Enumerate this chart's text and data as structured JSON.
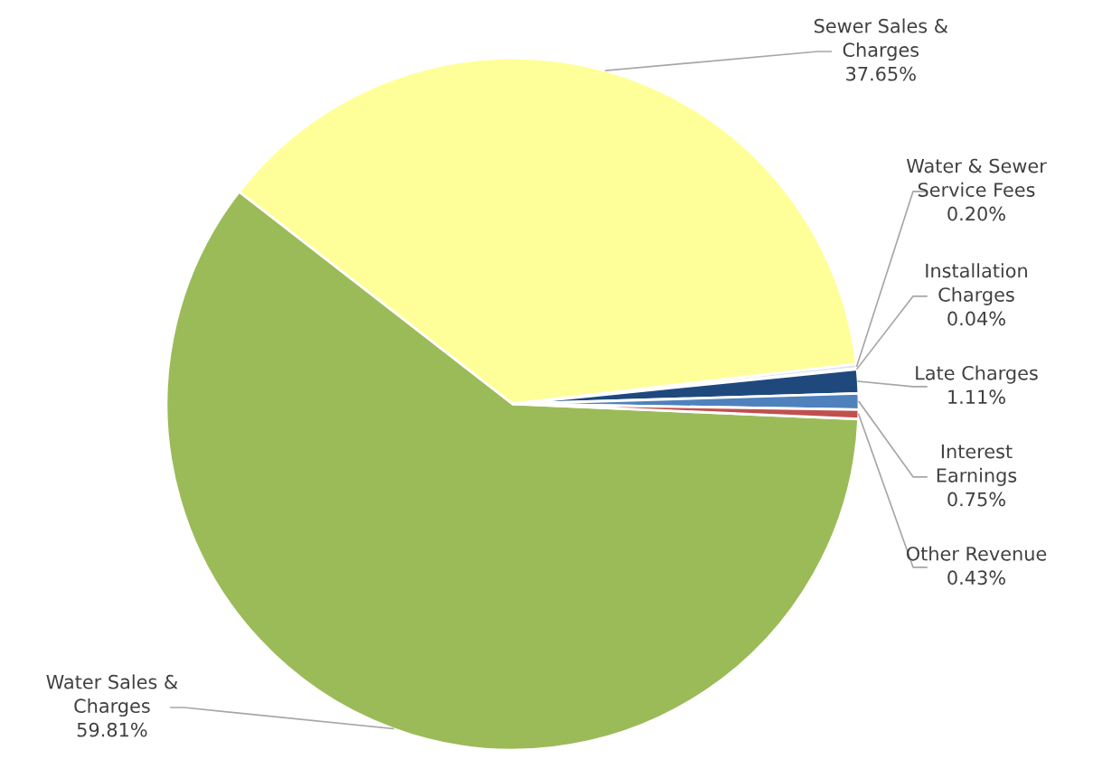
{
  "chart_data": {
    "type": "pie",
    "categories": [
      "Water Sales &\nCharges",
      "Sewer Sales &\nCharges",
      "Water & Sewer\nService Fees",
      "Installation\nCharges",
      "Late Charges",
      "Interest\nEarnings",
      "Other Revenue"
    ],
    "values": [
      59.81,
      37.65,
      0.2,
      0.04,
      1.11,
      0.75,
      0.43
    ],
    "value_labels": [
      "59.81%",
      "37.65%",
      "0.20%",
      "0.04%",
      "1.11%",
      "0.75%",
      "0.43%"
    ],
    "colors": [
      "#9bbb59",
      "#ffff99",
      "#dbe5f1",
      "#c6d9f1",
      "#1f497d",
      "#4f81bd",
      "#c0504d"
    ],
    "legend": false
  }
}
